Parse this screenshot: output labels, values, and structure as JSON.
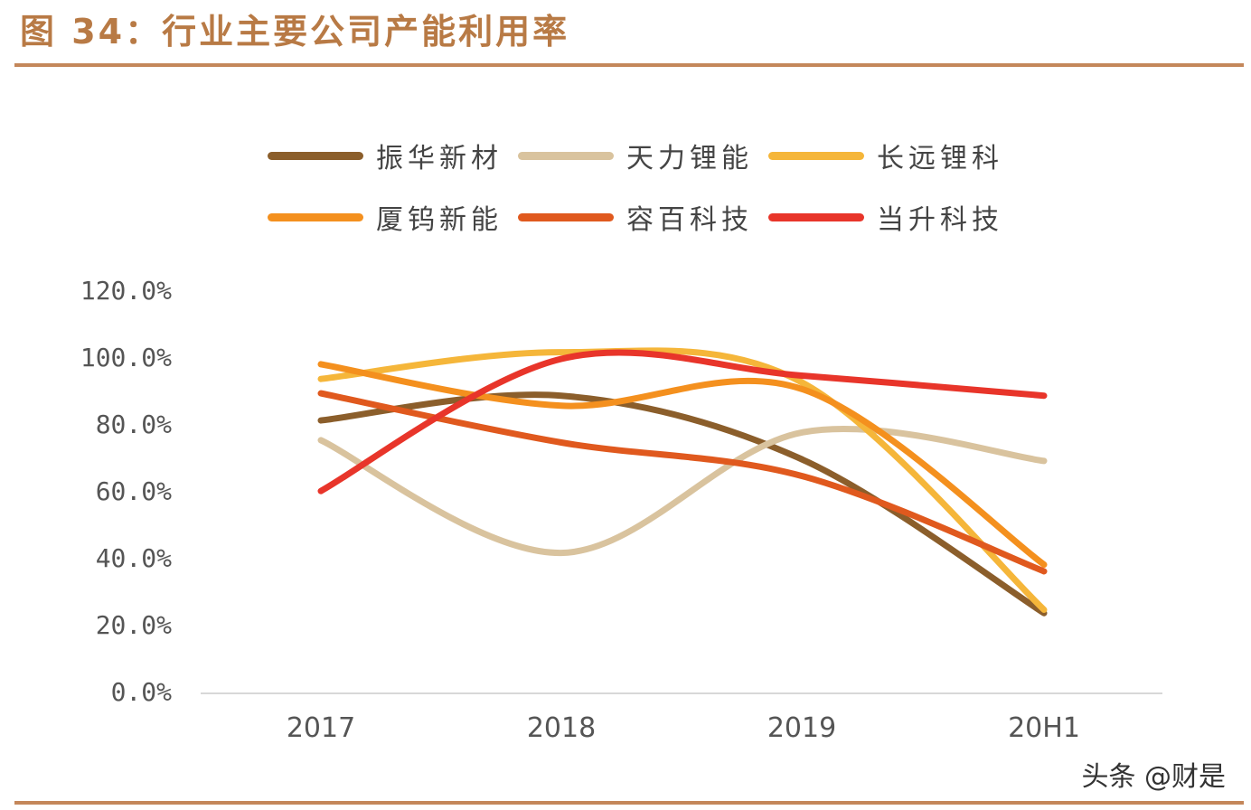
{
  "title": "图 34：行业主要公司产能利用率",
  "watermark": "头条 @财是",
  "chart_data": {
    "type": "line",
    "smooth": true,
    "categories": [
      "2017",
      "2018",
      "2019",
      "20H1"
    ],
    "ylim": [
      0,
      120
    ],
    "yticks": [
      "0.0%",
      "20.0%",
      "40.0%",
      "60.0%",
      "80.0%",
      "100.0%",
      "120.0%"
    ],
    "grid": false,
    "legend": "top",
    "series": [
      {
        "name": "振华新材",
        "color": "#8B5E2B",
        "values": [
          81.6,
          89.0,
          70.0,
          24.0
        ]
      },
      {
        "name": "天力锂能",
        "color": "#D9C39E",
        "values": [
          75.7,
          42.0,
          78.0,
          69.5
        ]
      },
      {
        "name": "长远锂科",
        "color": "#F5B63A",
        "values": [
          94.0,
          102.0,
          93.0,
          25.0
        ]
      },
      {
        "name": "厦钨新能",
        "color": "#F4901E",
        "values": [
          98.4,
          86.0,
          91.0,
          38.5
        ]
      },
      {
        "name": "容百科技",
        "color": "#E0591E",
        "values": [
          89.7,
          75.0,
          65.0,
          36.5
        ]
      },
      {
        "name": "当升科技",
        "color": "#E8352A",
        "values": [
          60.5,
          100.0,
          95.0,
          89.0
        ]
      }
    ]
  }
}
